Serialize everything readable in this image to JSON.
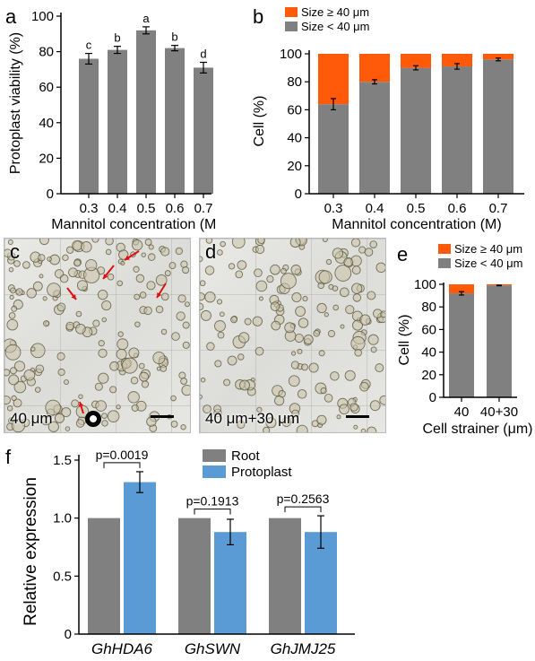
{
  "panels": {
    "a": {
      "label": "a",
      "chart_data": {
        "type": "bar",
        "categories": [
          "0.3",
          "0.4",
          "0.5",
          "0.6",
          "0.7"
        ],
        "values": [
          76,
          81,
          92,
          82,
          71
        ],
        "errors": [
          3,
          2,
          2,
          1.5,
          3
        ],
        "significance": [
          "c",
          "b",
          "a",
          "b",
          "d"
        ],
        "ylabel": "Protoplast viability (%)",
        "xlabel": "Mannitol concentration (M)",
        "ylim": [
          0,
          100
        ],
        "yticks": [
          "0",
          "20",
          "40",
          "60",
          "80",
          "100"
        ],
        "color": "#808080"
      }
    },
    "b": {
      "label": "b",
      "chart_data": {
        "type": "bar",
        "stacked": true,
        "categories": [
          "0.3",
          "0.4",
          "0.5",
          "0.6",
          "0.7"
        ],
        "series": [
          {
            "name": "Size < 40 μm",
            "values": [
              64,
              80,
              90,
              91,
              96
            ],
            "color": "#808080",
            "errors": [
              4,
              1.5,
              1.5,
              2,
              1
            ]
          },
          {
            "name": "Size ≥ 40 μm",
            "values": [
              36,
              20,
              10,
              9,
              4
            ],
            "color": "#ff5a0a"
          }
        ],
        "ylabel": "Cell (%)",
        "xlabel": "Mannitol concentration (M)",
        "ylim": [
          0,
          100
        ],
        "yticks": [
          "0",
          "20",
          "40",
          "60",
          "80",
          "100"
        ],
        "legend_position": "top-left"
      }
    },
    "c": {
      "label": "c",
      "caption": "40 μm"
    },
    "d": {
      "label": "d",
      "caption": "40 μm+30 μm"
    },
    "e": {
      "label": "e",
      "chart_data": {
        "type": "bar",
        "stacked": true,
        "categories": [
          "40",
          "40+30"
        ],
        "series": [
          {
            "name": "Size < 40 μm",
            "values": [
              92,
              99
            ],
            "color": "#808080",
            "errors": [
              1.5,
              0.3
            ]
          },
          {
            "name": "Size ≥ 40 μm",
            "values": [
              8,
              1
            ],
            "color": "#ff5a0a"
          }
        ],
        "ylabel": "Cell (%)",
        "xlabel": "Cell strainer (μm)",
        "ylim": [
          0,
          100
        ],
        "yticks": [
          "0",
          "20",
          "40",
          "60",
          "80",
          "100"
        ],
        "legend_position": "top"
      }
    },
    "f": {
      "label": "f",
      "chart_data": {
        "type": "bar",
        "categories": [
          "GhHDA6",
          "GhSWN",
          "GhJMJ25"
        ],
        "series": [
          {
            "name": "Root",
            "values": [
              1.0,
              1.0,
              1.0
            ],
            "color": "#808080"
          },
          {
            "name": "Protoplast",
            "values": [
              1.31,
              0.88,
              0.88
            ],
            "errors": [
              0.09,
              0.11,
              0.14
            ],
            "color": "#5b9bd5"
          }
        ],
        "pvalues": [
          "p=0.0019",
          "p=0.1913",
          "p=0.2563"
        ],
        "ylabel": "Relative expression",
        "xlabel": "",
        "ylim": [
          0,
          1.5
        ],
        "yticks": [
          "0",
          "0.5",
          "1.0",
          "1.5"
        ],
        "legend_position": "top"
      }
    }
  }
}
